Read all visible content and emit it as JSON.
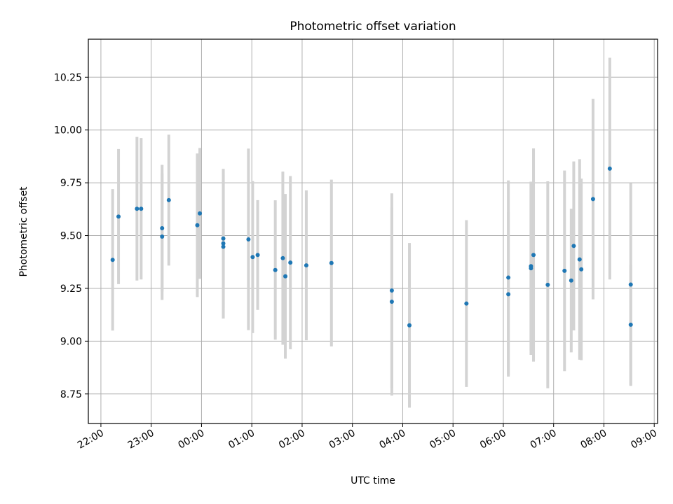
{
  "chart_data": {
    "type": "scatter",
    "title": "Photometric offset variation",
    "xlabel": "UTC time",
    "ylabel": "Photometric offset",
    "xlim": [
      "21:45",
      "09:04"
    ],
    "ylim": [
      8.61,
      10.43
    ],
    "xticks": [
      "22:00",
      "23:00",
      "00:00",
      "01:00",
      "02:00",
      "03:00",
      "04:00",
      "05:00",
      "06:00",
      "07:00",
      "08:00",
      "09:00"
    ],
    "yticks": [
      "8.75",
      "9.00",
      "9.25",
      "9.50",
      "9.75",
      "10.00",
      "10.25"
    ],
    "grid": true,
    "colors": {
      "point": "#1f77b4",
      "errorbar": "#d3d3d3",
      "grid": "#b0b0b0"
    },
    "series": [
      {
        "points": [
          {
            "time": "22:14",
            "y": 9.385,
            "err": 0.335
          },
          {
            "time": "22:21",
            "y": 9.59,
            "err": 0.32
          },
          {
            "time": "22:43",
            "y": 9.627,
            "err": 0.34
          },
          {
            "time": "22:48",
            "y": 9.627,
            "err": 0.335
          },
          {
            "time": "23:13",
            "y": 9.535,
            "err": 0.3
          },
          {
            "time": "23:13",
            "y": 9.495,
            "err": 0.3
          },
          {
            "time": "23:21",
            "y": 9.668,
            "err": 0.31
          },
          {
            "time": "23:55",
            "y": 9.549,
            "err": 0.34
          },
          {
            "time": "23:58",
            "y": 9.605,
            "err": 0.31
          },
          {
            "time": "00:26",
            "y": 9.486,
            "err": 0.33
          },
          {
            "time": "00:26",
            "y": 9.463,
            "err": 0.35
          },
          {
            "time": "00:26",
            "y": 9.447,
            "err": 0.34
          },
          {
            "time": "00:56",
            "y": 9.482,
            "err": 0.43
          },
          {
            "time": "01:01",
            "y": 9.398,
            "err": 0.36
          },
          {
            "time": "01:07",
            "y": 9.408,
            "err": 0.26
          },
          {
            "time": "01:28",
            "y": 9.337,
            "err": 0.33
          },
          {
            "time": "01:37",
            "y": 9.393,
            "err": 0.41
          },
          {
            "time": "01:40",
            "y": 9.307,
            "err": 0.39
          },
          {
            "time": "01:46",
            "y": 9.372,
            "err": 0.41
          },
          {
            "time": "02:05",
            "y": 9.359,
            "err": 0.355
          },
          {
            "time": "02:35",
            "y": 9.37,
            "err": 0.395
          },
          {
            "time": "03:47",
            "y": 9.24,
            "err": 0.46
          },
          {
            "time": "03:47",
            "y": 9.187,
            "err": 0.445
          },
          {
            "time": "04:08",
            "y": 9.075,
            "err": 0.39
          },
          {
            "time": "05:16",
            "y": 9.178,
            "err": 0.395
          },
          {
            "time": "06:06",
            "y": 9.301,
            "err": 0.46
          },
          {
            "time": "06:06",
            "y": 9.222,
            "err": 0.39
          },
          {
            "time": "06:33",
            "y": 9.345,
            "err": 0.41
          },
          {
            "time": "06:33",
            "y": 9.355,
            "err": 0.4
          },
          {
            "time": "06:36",
            "y": 9.408,
            "err": 0.505
          },
          {
            "time": "06:53",
            "y": 9.267,
            "err": 0.49
          },
          {
            "time": "07:13",
            "y": 9.333,
            "err": 0.475
          },
          {
            "time": "07:21",
            "y": 9.287,
            "err": 0.34
          },
          {
            "time": "07:24",
            "y": 9.451,
            "err": 0.4
          },
          {
            "time": "07:31",
            "y": 9.387,
            "err": 0.475
          },
          {
            "time": "07:33",
            "y": 9.34,
            "err": 0.43
          },
          {
            "time": "07:47",
            "y": 9.673,
            "err": 0.475
          },
          {
            "time": "08:07",
            "y": 9.817,
            "err": 0.525
          },
          {
            "time": "08:32",
            "y": 9.268,
            "err": 0.48
          },
          {
            "time": "08:32",
            "y": 9.078,
            "err": 0.285
          }
        ]
      }
    ]
  }
}
